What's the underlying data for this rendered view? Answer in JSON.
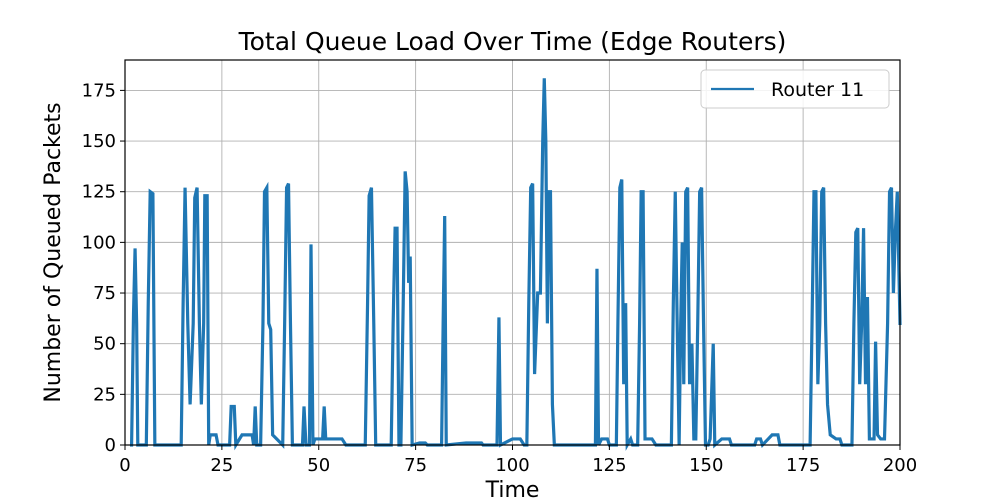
{
  "chart_data": {
    "type": "line",
    "title": "Total Queue Load Over Time (Edge Routers)",
    "xlabel": "Time",
    "ylabel": "Number of Queued Packets",
    "xlim": [
      0,
      200
    ],
    "ylim": [
      0,
      190
    ],
    "xticks": [
      0,
      25,
      50,
      75,
      100,
      125,
      150,
      175,
      200
    ],
    "yticks": [
      0,
      25,
      50,
      75,
      100,
      125,
      150,
      175
    ],
    "grid": true,
    "legend_position": "top-right",
    "series": [
      {
        "name": "Router 11",
        "color": "#1f77b4",
        "bursts": [
          [
            1.7,
            0
          ],
          [
            2.2,
            65
          ],
          [
            2.6,
            97
          ],
          [
            3.0,
            60
          ],
          [
            3.3,
            0
          ],
          [
            5.5,
            0
          ],
          [
            6.0,
            70
          ],
          [
            6.5,
            125
          ],
          [
            7.2,
            124
          ],
          [
            7.7,
            0
          ],
          [
            14.5,
            0
          ],
          [
            15.0,
            70
          ],
          [
            15.5,
            127
          ],
          [
            16.2,
            60
          ],
          [
            16.8,
            20
          ],
          [
            17.6,
            60
          ],
          [
            18.0,
            122
          ],
          [
            18.6,
            127
          ],
          [
            19.2,
            60
          ],
          [
            19.7,
            20
          ],
          [
            20.3,
            60
          ],
          [
            20.6,
            123
          ],
          [
            21.2,
            123
          ],
          [
            21.6,
            0
          ],
          [
            22.0,
            5
          ],
          [
            23.5,
            5
          ],
          [
            24.0,
            0
          ],
          [
            27.0,
            0
          ],
          [
            27.4,
            19
          ],
          [
            28.2,
            19
          ],
          [
            28.6,
            0
          ],
          [
            30.2,
            5
          ],
          [
            32.8,
            5
          ],
          [
            33.2,
            0
          ],
          [
            33.6,
            19
          ],
          [
            34.0,
            0
          ],
          [
            35.0,
            0
          ],
          [
            35.6,
            60
          ],
          [
            36.0,
            125
          ],
          [
            36.6,
            127
          ],
          [
            37.1,
            60
          ],
          [
            37.6,
            57
          ],
          [
            38.1,
            5
          ],
          [
            40.7,
            0
          ],
          [
            41.2,
            60
          ],
          [
            41.7,
            127
          ],
          [
            42.2,
            129
          ],
          [
            42.7,
            60
          ],
          [
            43.2,
            0
          ],
          [
            45.8,
            0
          ],
          [
            46.2,
            19
          ],
          [
            46.7,
            0
          ],
          [
            47.6,
            0
          ],
          [
            48.0,
            99
          ],
          [
            48.5,
            0
          ],
          [
            49.0,
            3
          ],
          [
            51.0,
            3
          ],
          [
            51.4,
            19
          ],
          [
            51.8,
            3
          ],
          [
            53.0,
            3
          ],
          [
            55.0,
            3
          ],
          [
            56.0,
            3
          ],
          [
            57.0,
            0
          ],
          [
            62.0,
            0
          ],
          [
            62.6,
            70
          ],
          [
            63.0,
            123
          ],
          [
            63.6,
            127
          ],
          [
            64.2,
            60
          ],
          [
            64.7,
            0
          ],
          [
            68.7,
            0
          ],
          [
            69.2,
            60
          ],
          [
            69.7,
            107
          ],
          [
            70.2,
            107
          ],
          [
            70.7,
            0
          ],
          [
            71.2,
            0
          ],
          [
            71.8,
            70
          ],
          [
            72.3,
            135
          ],
          [
            72.8,
            125
          ],
          [
            73.2,
            80
          ],
          [
            73.6,
            93
          ],
          [
            74.1,
            0
          ],
          [
            76.0,
            1
          ],
          [
            77.5,
            1
          ],
          [
            78.0,
            0
          ],
          [
            81.7,
            0
          ],
          [
            82.1,
            60
          ],
          [
            82.5,
            113
          ],
          [
            82.9,
            0
          ],
          [
            88.0,
            1
          ],
          [
            92.0,
            1
          ],
          [
            92.4,
            0
          ],
          [
            96.0,
            0
          ],
          [
            96.5,
            63
          ],
          [
            96.9,
            0
          ],
          [
            100.0,
            3
          ],
          [
            102.0,
            3
          ],
          [
            103.0,
            0
          ],
          [
            103.7,
            0
          ],
          [
            104.2,
            70
          ],
          [
            104.7,
            127
          ],
          [
            105.2,
            129
          ],
          [
            105.7,
            35
          ],
          [
            106.5,
            75
          ],
          [
            107.2,
            75
          ],
          [
            107.8,
            150
          ],
          [
            108.2,
            181
          ],
          [
            108.6,
            150
          ],
          [
            109.0,
            60
          ],
          [
            109.4,
            125
          ],
          [
            109.8,
            125
          ],
          [
            110.3,
            20
          ],
          [
            110.8,
            0
          ],
          [
            111.5,
            0
          ],
          [
            120.0,
            0
          ],
          [
            121.4,
            0
          ],
          [
            121.8,
            87
          ],
          [
            122.2,
            0
          ],
          [
            123.0,
            3
          ],
          [
            124.5,
            3
          ],
          [
            125.0,
            0
          ],
          [
            126.8,
            0
          ],
          [
            127.2,
            60
          ],
          [
            127.7,
            127
          ],
          [
            128.2,
            131
          ],
          [
            128.7,
            30
          ],
          [
            129.2,
            70
          ],
          [
            129.6,
            0
          ],
          [
            130.5,
            3
          ],
          [
            131.0,
            0
          ],
          [
            132.3,
            0
          ],
          [
            132.8,
            60
          ],
          [
            133.2,
            125
          ],
          [
            133.7,
            125
          ],
          [
            134.2,
            3
          ],
          [
            135.5,
            3
          ],
          [
            136.0,
            3
          ],
          [
            137.0,
            0
          ],
          [
            141.0,
            0
          ],
          [
            141.5,
            70
          ],
          [
            142.0,
            125
          ],
          [
            142.5,
            60
          ],
          [
            143.0,
            0
          ],
          [
            143.4,
            60
          ],
          [
            143.8,
            100
          ],
          [
            144.2,
            30
          ],
          [
            144.7,
            125
          ],
          [
            145.2,
            127
          ],
          [
            145.7,
            30
          ],
          [
            146.3,
            50
          ],
          [
            146.8,
            3
          ],
          [
            147.3,
            3
          ],
          [
            147.8,
            60
          ],
          [
            148.3,
            125
          ],
          [
            148.8,
            127
          ],
          [
            149.3,
            60
          ],
          [
            149.8,
            0
          ],
          [
            150.5,
            0
          ],
          [
            151.0,
            3
          ],
          [
            151.8,
            50
          ],
          [
            152.2,
            0
          ],
          [
            154.0,
            3
          ],
          [
            156.0,
            3
          ],
          [
            156.5,
            0
          ],
          [
            162.5,
            0
          ],
          [
            163.0,
            3
          ],
          [
            164.0,
            3
          ],
          [
            164.5,
            0
          ],
          [
            166.0,
            3
          ],
          [
            167.0,
            5
          ],
          [
            168.5,
            5
          ],
          [
            169.0,
            0
          ],
          [
            176.8,
            0
          ],
          [
            177.3,
            60
          ],
          [
            177.8,
            125
          ],
          [
            178.3,
            125
          ],
          [
            178.8,
            30
          ],
          [
            179.3,
            60
          ],
          [
            179.8,
            125
          ],
          [
            180.3,
            127
          ],
          [
            180.8,
            60
          ],
          [
            181.3,
            20
          ],
          [
            182.0,
            5
          ],
          [
            183.5,
            3
          ],
          [
            184.5,
            3
          ],
          [
            185.0,
            0
          ],
          [
            187.6,
            0
          ],
          [
            188.1,
            60
          ],
          [
            188.6,
            105
          ],
          [
            189.1,
            107
          ],
          [
            189.6,
            30
          ],
          [
            190.1,
            60
          ],
          [
            190.6,
            107
          ],
          [
            191.1,
            30
          ],
          [
            191.6,
            73
          ],
          [
            192.1,
            3
          ],
          [
            193.3,
            3
          ],
          [
            193.7,
            51
          ],
          [
            194.2,
            5
          ],
          [
            195.0,
            3
          ],
          [
            196.0,
            3
          ],
          [
            196.8,
            60
          ],
          [
            197.3,
            125
          ],
          [
            197.8,
            127
          ],
          [
            198.3,
            75
          ],
          [
            198.8,
            105
          ],
          [
            199.3,
            125
          ],
          [
            200.0,
            60
          ]
        ]
      }
    ]
  }
}
